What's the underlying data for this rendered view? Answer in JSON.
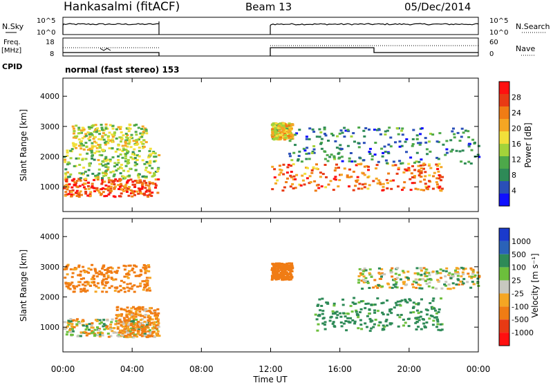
{
  "header": {
    "site": "Hankasalmi (fitACF)",
    "beam": "Beam 13",
    "date": "05/Dec/2014"
  },
  "panels": {
    "nsky": {
      "label": "N.Sky",
      "right_label": "N.Search",
      "left_ticks": [
        "10^5",
        "10^0"
      ],
      "right_ticks": [
        "10^5",
        "10^0"
      ]
    },
    "freq": {
      "label_line1": "Freq.",
      "label_line2": "[MHz]",
      "right_label": "Nave",
      "left_ticks": [
        "18",
        "8"
      ],
      "right_ticks": [
        "60",
        "0"
      ]
    },
    "cpid": {
      "label": "CPID",
      "text": "normal (fast stereo) 153"
    }
  },
  "colors": {
    "power": [
      "#1010ff",
      "#2a4fb8",
      "#2e8a57",
      "#4da84a",
      "#a3d33a",
      "#f2e03a",
      "#f5a623",
      "#f07c14",
      "#e83a14",
      "#ff1010"
    ],
    "velocity": [
      "#1a3acc",
      "#2a62b8",
      "#2e8a57",
      "#6cbf3c",
      "#c8c8c0",
      "#f5a623",
      "#f07c14",
      "#e83a14",
      "#ff1010"
    ]
  },
  "chart_data": [
    {
      "type": "heatmap",
      "name": "power",
      "xlabel": "",
      "ylabel": "Slant Range [km]",
      "ylim": [
        180,
        4600
      ],
      "xlim": [
        0,
        24
      ],
      "yticks": [
        1000,
        2000,
        3000,
        4000
      ],
      "colorbar": {
        "label": "Power [dB]",
        "ticks": [
          "4",
          "8",
          "12",
          "16",
          "20",
          "24",
          "28"
        ],
        "range": [
          0,
          32
        ]
      },
      "data_gap_hours": [
        5.5,
        12.0
      ],
      "regions": [
        {
          "t": [
            0.0,
            5.5
          ],
          "range_km": [
            700,
            1300
          ],
          "level_db": 26
        },
        {
          "t": [
            0.0,
            5.5
          ],
          "range_km": [
            1300,
            2300
          ],
          "level_db": 14
        },
        {
          "t": [
            0.5,
            4.8
          ],
          "range_km": [
            2300,
            3100
          ],
          "level_db": 16
        },
        {
          "t": [
            12.0,
            22.0
          ],
          "range_km": [
            900,
            1800
          ],
          "level_db": 24
        },
        {
          "t": [
            13.0,
            24.0
          ],
          "range_km": [
            1800,
            3000
          ],
          "level_db": 8
        },
        {
          "t": [
            12.0,
            13.2
          ],
          "range_km": [
            2600,
            3150
          ],
          "level_db": 18
        }
      ]
    },
    {
      "type": "heatmap",
      "name": "velocity",
      "xlabel": "Time UT",
      "ylabel": "Slant Range [km]",
      "ylim": [
        180,
        4600
      ],
      "xlim": [
        0,
        24
      ],
      "yticks": [
        1000,
        2000,
        3000,
        4000
      ],
      "xticks": [
        "00:00",
        "04:00",
        "08:00",
        "12:00",
        "16:00",
        "20:00",
        "00:00"
      ],
      "colorbar": {
        "label": "Velocity [m s⁻¹]",
        "ticks": [
          "1000",
          "500",
          "100",
          "25",
          "-25",
          "-100",
          "-500",
          "-1000"
        ]
      },
      "data_gap_hours": [
        5.5,
        12.0
      ],
      "regions": [
        {
          "t": [
            0.0,
            5.5
          ],
          "range_km": [
            700,
            1300
          ],
          "velocity": 0
        },
        {
          "t": [
            3.0,
            5.5
          ],
          "range_km": [
            700,
            1700
          ],
          "velocity": -150
        },
        {
          "t": [
            0.0,
            5.0
          ],
          "range_km": [
            2200,
            3100
          ],
          "velocity": -200
        },
        {
          "t": [
            12.0,
            13.2
          ],
          "range_km": [
            2600,
            3150
          ],
          "velocity": -300
        },
        {
          "t": [
            14.5,
            22.0
          ],
          "range_km": [
            900,
            2000
          ],
          "velocity": 200
        },
        {
          "t": [
            17.0,
            24.0
          ],
          "range_km": [
            2300,
            3000
          ],
          "velocity": 0
        }
      ]
    }
  ]
}
